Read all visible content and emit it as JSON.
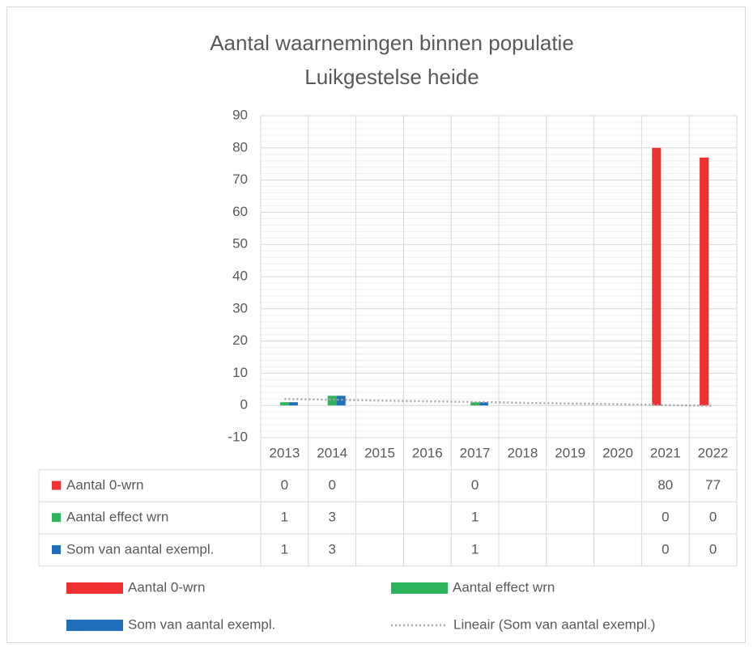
{
  "chart_data": {
    "type": "bar",
    "title": [
      "Aantal waarnemingen binnen populatie",
      "Luikgestelse heide"
    ],
    "categories": [
      "2013",
      "2014",
      "2015",
      "2016",
      "2017",
      "2018",
      "2019",
      "2020",
      "2021",
      "2022"
    ],
    "series": [
      {
        "name": "Aantal 0-wrn",
        "color": "#ee3030",
        "values": [
          0,
          0,
          null,
          null,
          0,
          null,
          null,
          null,
          80,
          77
        ]
      },
      {
        "name": "Aantal effect wrn",
        "color": "#2db55d",
        "values": [
          1,
          3,
          null,
          null,
          1,
          null,
          null,
          null,
          0,
          0
        ]
      },
      {
        "name": "Som van aantal exempl.",
        "color": "#1f6fba",
        "values": [
          1,
          3,
          null,
          null,
          1,
          null,
          null,
          null,
          0,
          0
        ]
      }
    ],
    "trendline": {
      "name": "Lineair (Som van aantal exempl.)",
      "color": "#a6a6a6",
      "values": [
        2.0,
        1.8,
        1.5,
        1.3,
        1.1,
        0.8,
        0.6,
        0.4,
        0.1,
        -0.1
      ]
    },
    "ylim": [
      -10,
      90
    ],
    "yticks": [
      -10,
      0,
      10,
      20,
      30,
      40,
      50,
      60,
      70,
      80,
      90
    ],
    "yminor": 2,
    "grid": true,
    "data_table": true
  }
}
